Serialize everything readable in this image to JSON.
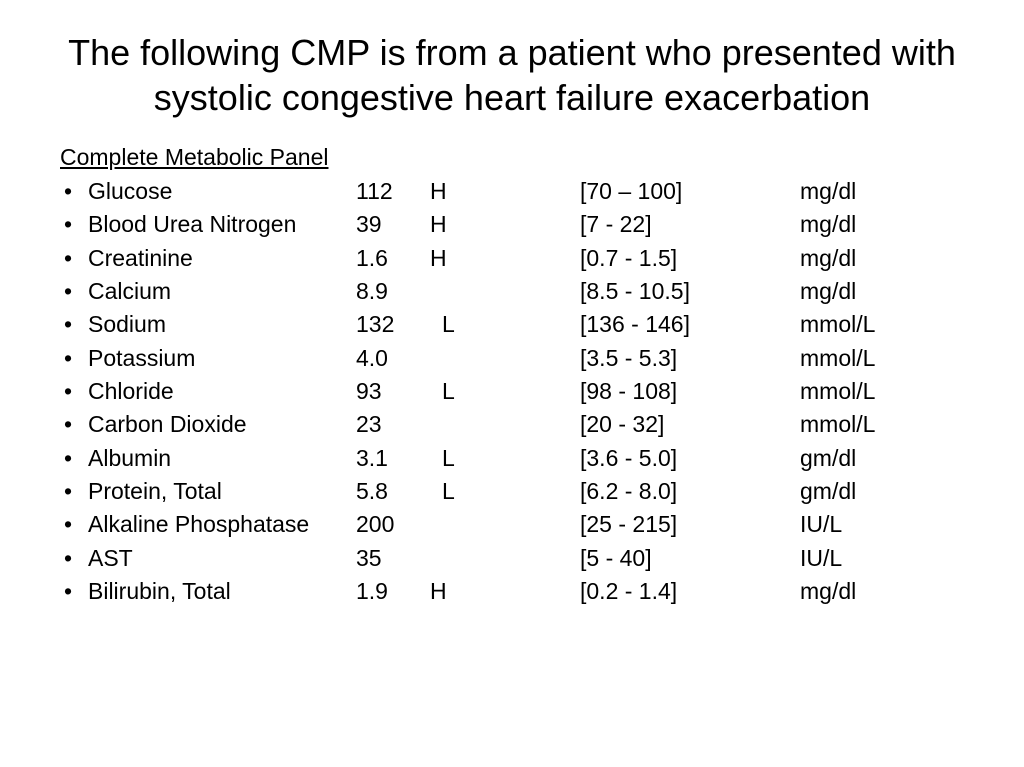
{
  "title": "The following CMP is from a patient who presented with systolic congestive heart failure exacerbation",
  "panel_header": "Complete Metabolic Panel",
  "bullet_char": "•",
  "rows": [
    {
      "name": "Glucose",
      "value": "112",
      "flag": "H",
      "flag_shift": false,
      "range": "[70 – 100]",
      "unit": "mg/dl"
    },
    {
      "name": "Blood Urea Nitrogen",
      "value": "39",
      "flag": "H",
      "flag_shift": false,
      "range": "[7 - 22]",
      "unit": "mg/dl"
    },
    {
      "name": "Creatinine",
      "value": "1.6",
      "flag": "H",
      "flag_shift": false,
      "range": "[0.7 - 1.5]",
      "unit": "mg/dl"
    },
    {
      "name": "Calcium",
      "value": "8.9",
      "flag": "",
      "flag_shift": false,
      "range": "[8.5 - 10.5]",
      "unit": "mg/dl"
    },
    {
      "name": "Sodium",
      "value": "132",
      "flag": "L",
      "flag_shift": true,
      "range": "[136 - 146]",
      "unit": "mmol/L"
    },
    {
      "name": "Potassium",
      "value": "4.0",
      "flag": "",
      "flag_shift": false,
      "range": "[3.5 - 5.3]",
      "unit": "mmol/L"
    },
    {
      "name": "Chloride",
      "value": "93",
      "flag": "L",
      "flag_shift": true,
      "range": "[98 - 108]",
      "unit": "mmol/L"
    },
    {
      "name": "Carbon Dioxide",
      "value": "23",
      "flag": "",
      "flag_shift": false,
      "range": "[20 - 32]",
      "unit": "mmol/L"
    },
    {
      "name": "Albumin",
      "value": "3.1",
      "flag": "L",
      "flag_shift": true,
      "range": "[3.6 - 5.0]",
      "unit": "gm/dl"
    },
    {
      "name": "Protein, Total",
      "value": "5.8",
      "flag": "L",
      "flag_shift": true,
      "range": "[6.2 - 8.0]",
      "unit": "gm/dl"
    },
    {
      "name": "Alkaline Phosphatase",
      "value": "200",
      "flag": "",
      "flag_shift": false,
      "range": "[25 - 215]",
      "unit": "IU/L"
    },
    {
      "name": "AST",
      "value": "35",
      "flag": "",
      "flag_shift": false,
      "range": "[5 - 40]",
      "unit": "IU/L"
    },
    {
      "name": "Bilirubin, Total",
      "value": "1.9",
      "flag": "H",
      "flag_shift": false,
      "range": "[0.2 - 1.4]",
      "unit": "mg/dl"
    }
  ],
  "style": {
    "background_color": "#ffffff",
    "text_color": "#000000",
    "font_family": "Arial",
    "title_fontsize": 36,
    "body_fontsize": 23,
    "line_height": 1.45,
    "columns": {
      "bullet_width": 28,
      "analyte_width": 268,
      "value_width": 74,
      "flag_width": 150,
      "range_width": 220
    }
  }
}
